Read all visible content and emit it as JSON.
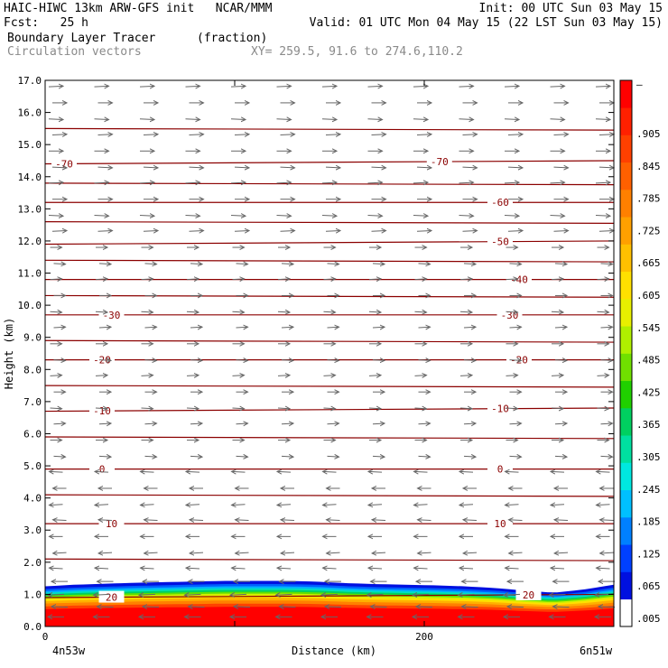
{
  "header": {
    "line1_left": "HAIC-HIWC 13km ARW-GFS init   NCAR/MMM",
    "line1_right": "Init: 00 UTC Sun 03 May 15",
    "line2_left": "Fcst:   25 h",
    "line2_right": "Valid: 01 UTC Mon 04 May 15 (22 LST Sun 03 May 15)",
    "field_name": "Boundary Layer Tracer",
    "field_units": "(fraction)",
    "vectors_label": "Circulation vectors",
    "xy_label": "XY= 259.5, 91.6 to 274.6,110.2"
  },
  "chart_data": {
    "type": "heatmap",
    "xlabel": "Distance (km)",
    "ylabel": "Height (km)",
    "xlim": [
      0,
      300
    ],
    "ylim": [
      0,
      17
    ],
    "x_ticks": [
      "0",
      "200"
    ],
    "x_tick_values": [
      0,
      200
    ],
    "y_ticks": [
      "0.0",
      "1.0",
      "2.0",
      "3.0",
      "4.0",
      "5.0",
      "6.0",
      "7.0",
      "8.0",
      "9.0",
      "10.0",
      "11.0",
      "12.0",
      "13.0",
      "14.0",
      "15.0",
      "16.0",
      "17.0"
    ],
    "left_endpoint_label": "4n53w",
    "right_endpoint_label": "6n51w",
    "colorbar_labels": [
      ".005",
      ".065",
      ".125",
      ".185",
      ".245",
      ".305",
      ".365",
      ".425",
      ".485",
      ".545",
      ".605",
      ".665",
      ".725",
      ".785",
      ".845",
      ".905",
      "–"
    ],
    "colorbar_colors": [
      "#ffffff",
      "#0010e0",
      "#0040ff",
      "#0080ff",
      "#00c0ff",
      "#00e8e0",
      "#00e0a0",
      "#00d060",
      "#20d000",
      "#70e000",
      "#b0f000",
      "#e8f000",
      "#ffe000",
      "#ffc000",
      "#ffa000",
      "#ff8000",
      "#ff6000",
      "#ff4000",
      "#ff2000",
      "#ff0000"
    ],
    "tracer_top_km": [
      1.25,
      1.3,
      1.33,
      1.36,
      1.38,
      1.4,
      1.42,
      1.42,
      1.42,
      1.4,
      1.35,
      1.32,
      1.3,
      1.28,
      1.25,
      1.2,
      1.12,
      1.05,
      1.15,
      1.3
    ],
    "temperature_contours": [
      {
        "label": "-70",
        "y_left": 14.4,
        "y_right": 14.5,
        "label_x": [
          10,
          208
        ]
      },
      {
        "label": "-60",
        "y_left": 13.2,
        "y_right": 13.2,
        "label_x": [
          240
        ]
      },
      {
        "label": "-50",
        "y_left": 11.9,
        "y_right": 12.0,
        "label_x": [
          240
        ]
      },
      {
        "label": "-40",
        "y_left": 10.8,
        "y_right": 10.8,
        "label_x": [
          250
        ]
      },
      {
        "label": "-30",
        "y_left": 9.7,
        "y_right": 9.7,
        "label_x": [
          35,
          245
        ]
      },
      {
        "label": "-20",
        "y_left": 8.3,
        "y_right": 8.3,
        "label_x": [
          30,
          250
        ]
      },
      {
        "label": "-10",
        "y_left": 6.7,
        "y_right": 6.8,
        "label_x": [
          30,
          240
        ]
      },
      {
        "label": "0",
        "y_left": 4.9,
        "y_right": 4.9,
        "label_x": [
          30,
          240
        ]
      },
      {
        "label": "10",
        "y_left": 3.2,
        "y_right": 3.2,
        "label_x": [
          35,
          240
        ]
      },
      {
        "label": "20",
        "y_left": 0.9,
        "y_right": 1.0,
        "label_x": [
          35,
          255
        ]
      }
    ],
    "unlabeled_contour_heights": [
      15.5,
      13.8,
      12.6,
      11.4,
      10.3,
      8.9,
      7.5,
      5.9,
      4.1,
      2.1
    ],
    "vector_columns": 13,
    "vector_rows_km": [
      16.8,
      16.3,
      15.8,
      15.3,
      14.8,
      14.3,
      13.8,
      13.3,
      12.8,
      12.3,
      11.8,
      11.3,
      10.8,
      10.3,
      9.8,
      9.3,
      8.8,
      8.3,
      7.8,
      7.3,
      6.8,
      6.3,
      5.8,
      5.3,
      4.8,
      4.3,
      3.8,
      3.3,
      2.8,
      2.3,
      1.8,
      1.4,
      1.0,
      0.6,
      0.3
    ]
  }
}
